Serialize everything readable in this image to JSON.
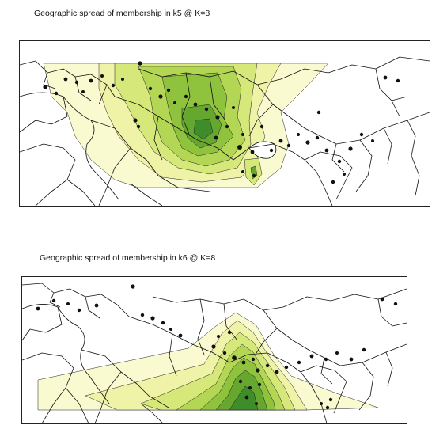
{
  "maps": [
    {
      "title": "Geographic spread of membership in k5 @ K=8"
    },
    {
      "title": "Geographic spread of membership in k6 @ K=8"
    }
  ],
  "colors": {
    "level1": "#fafad0",
    "level2": "#eef3a8",
    "level3": "#d6e87a",
    "level4": "#b4d655",
    "level5": "#8fc23d",
    "level6": "#66a82f",
    "level7": "#3f8c2a",
    "border": "#111111",
    "sample": "#111111"
  }
}
